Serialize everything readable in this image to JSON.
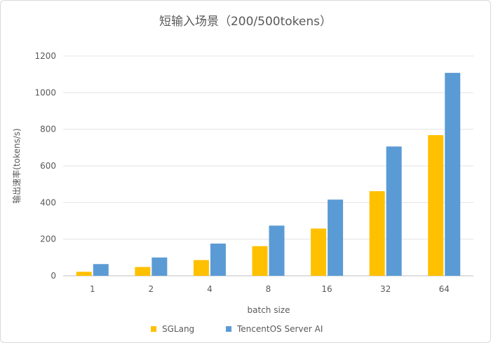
{
  "chart_data": {
    "type": "bar",
    "title": "短输入场景（200/500tokens）",
    "xlabel": "batch size",
    "ylabel": "输出速率(tokens/s)",
    "categories": [
      "1",
      "2",
      "4",
      "8",
      "16",
      "32",
      "64"
    ],
    "series": [
      {
        "name": "SGLang",
        "color": "#FFC000",
        "values": [
          22,
          48,
          86,
          162,
          258,
          462,
          768
        ]
      },
      {
        "name": "TencentOS Server AI",
        "color": "#5B9BD5",
        "values": [
          64,
          100,
          176,
          274,
          416,
          706,
          1108
        ]
      }
    ],
    "ylim": [
      0,
      1200
    ],
    "yticks": [
      0,
      200,
      400,
      600,
      800,
      1000,
      1200
    ],
    "grid": true,
    "legend_position": "bottom"
  }
}
